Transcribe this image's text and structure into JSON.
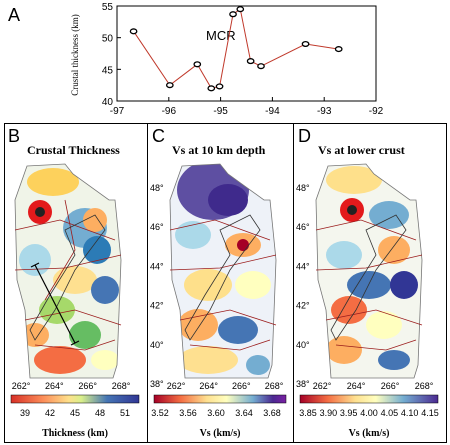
{
  "panels": {
    "A": {
      "label": "A",
      "chart_data": {
        "type": "line",
        "ylabel": "Crustal thickness (km)",
        "annotation": "MCR",
        "xlim": [
          -97,
          -92
        ],
        "ylim": [
          40,
          55
        ],
        "x_ticks": [
          "-97",
          "-96",
          "-95",
          "-94",
          "-93",
          "-92"
        ],
        "y_ticks": [
          "40",
          "45",
          "50",
          "55"
        ],
        "points": [
          {
            "x": -96.68,
            "y": 51.0
          },
          {
            "x": -95.98,
            "y": 42.5
          },
          {
            "x": -95.45,
            "y": 45.8
          },
          {
            "x": -95.18,
            "y": 42.0
          },
          {
            "x": -95.02,
            "y": 42.3
          },
          {
            "x": -94.76,
            "y": 53.7
          },
          {
            "x": -94.62,
            "y": 54.5
          },
          {
            "x": -94.42,
            "y": 46.3
          },
          {
            "x": -94.22,
            "y": 45.5
          },
          {
            "x": -93.36,
            "y": 49.0
          },
          {
            "x": -92.72,
            "y": 48.2
          }
        ],
        "line_color": "#c0392b",
        "marker_color": "#000000"
      }
    },
    "B": {
      "label": "B",
      "title": "Crustal Thickness",
      "x_ticks": [
        "262°",
        "264°",
        "266°",
        "268°"
      ],
      "colorbar_ticks": [
        "39",
        "42",
        "45",
        "48",
        "51"
      ],
      "colorbar_label": "Thickness (km)"
    },
    "C": {
      "label": "C",
      "title": "Vs at 10 km depth",
      "x_ticks": [
        "262°",
        "264°",
        "266°",
        "268°"
      ],
      "y_ticks": [
        "48°",
        "46°",
        "44°",
        "42°",
        "40°",
        "38°"
      ],
      "colorbar_ticks": [
        "3.52",
        "3.56",
        "3.60",
        "3.64",
        "3.68"
      ],
      "colorbar_label": "Vs (km/s)"
    },
    "D": {
      "label": "D",
      "title": "Vs at lower crust",
      "x_ticks": [
        "262°",
        "264°",
        "266°",
        "268°"
      ],
      "y_ticks": [
        "48°",
        "46°",
        "44°",
        "42°",
        "40°",
        "38°"
      ],
      "colorbar_ticks": [
        "3.85",
        "3.90",
        "3.95",
        "4.00",
        "4.05",
        "4.10",
        "4.15"
      ],
      "colorbar_label": "Vs (km/s)"
    }
  }
}
